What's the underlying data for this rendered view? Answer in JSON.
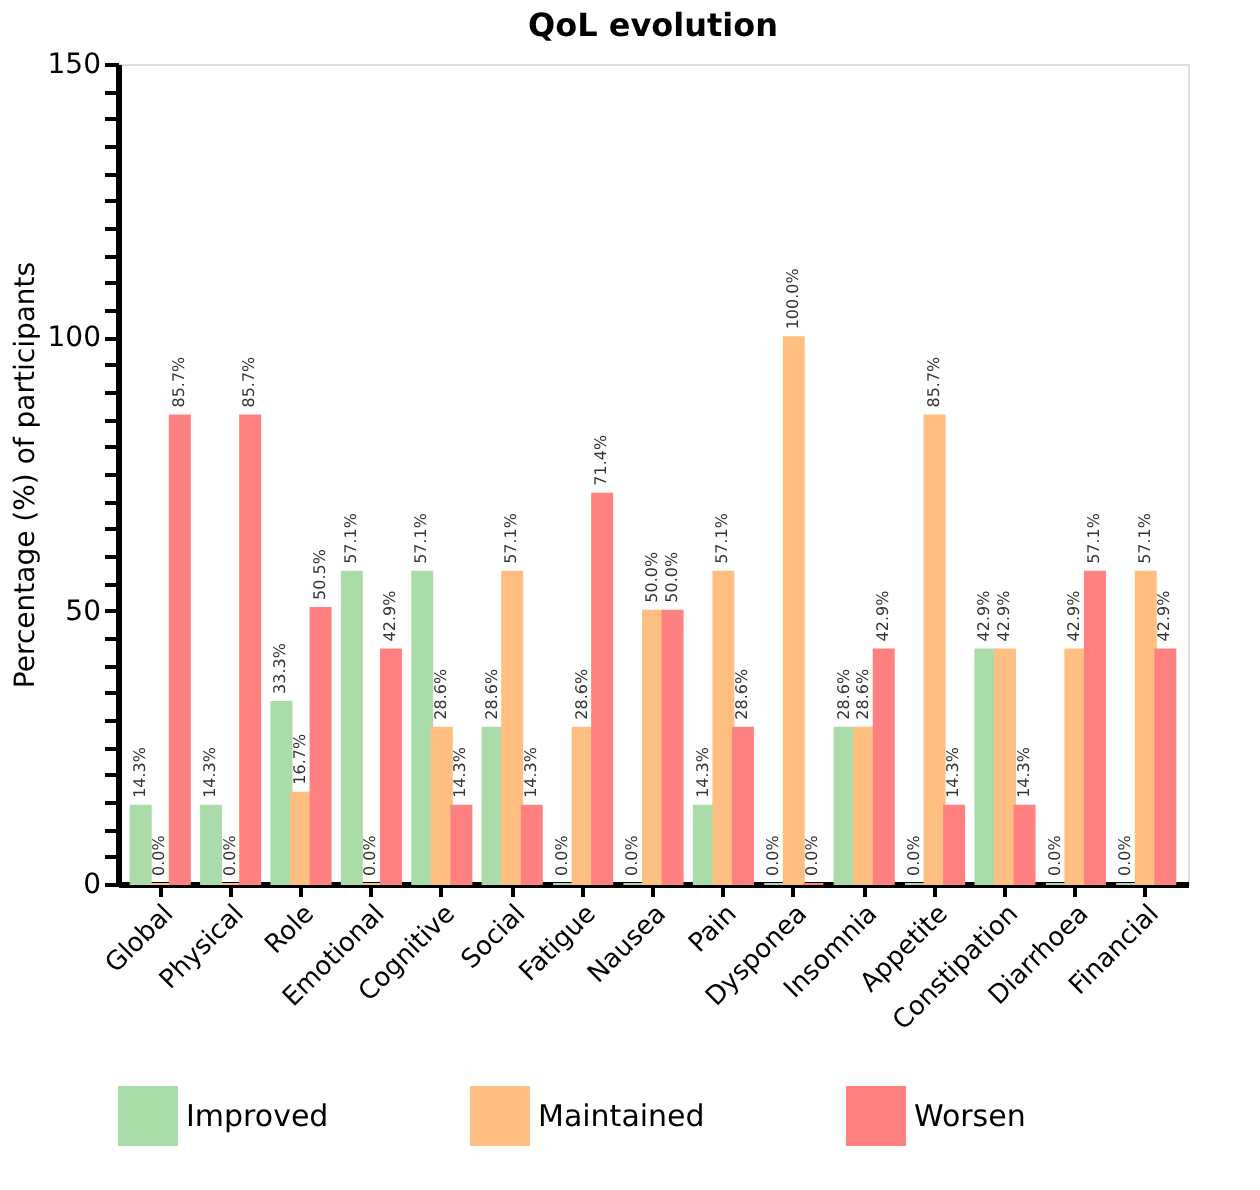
{
  "chart_data": {
    "type": "bar",
    "title": "QoL evolution",
    "ylabel": "Percentage (%) of participants",
    "categories": [
      "Global",
      "Physical",
      "Role",
      "Emotional",
      "Cognitive",
      "Social",
      "Fatigue",
      "Nausea",
      "Pain",
      "Dysponea",
      "Insomnia",
      "Appetite",
      "Constipation",
      "Diarrhoea",
      "Financial"
    ],
    "series": [
      {
        "name": "Improved",
        "color": "#a9dca9",
        "values": [
          14.3,
          14.3,
          33.3,
          57.1,
          57.1,
          28.6,
          0.0,
          0.0,
          14.3,
          0.0,
          28.6,
          0.0,
          42.9,
          0.0,
          0.0
        ],
        "value_labels": [
          "14.3%",
          "14.3%",
          "33.3%",
          "57.1%",
          "57.1%",
          "28.6%",
          "0.0%",
          "0.0%",
          "14.3%",
          "0.0%",
          "28.6%",
          "0.0%",
          "42.9%",
          "0.0%",
          "0.0%"
        ]
      },
      {
        "name": "Maintained",
        "color": "#ffbf80",
        "values": [
          0.0,
          0.0,
          16.7,
          0.0,
          28.6,
          57.1,
          28.6,
          50.0,
          57.1,
          100.0,
          28.6,
          85.7,
          42.9,
          42.9,
          57.1
        ],
        "value_labels": [
          "0.0%",
          "0.0%",
          "16.7%",
          "0.0%",
          "28.6%",
          "57.1%",
          "28.6%",
          "50.0%",
          "57.1%",
          "100.0%",
          "28.6%",
          "85.7%",
          "42.9%",
          "42.9%",
          "57.1%"
        ]
      },
      {
        "name": "Worsen",
        "color": "#ff8080",
        "values": [
          85.7,
          85.7,
          50.5,
          42.9,
          14.3,
          14.3,
          71.4,
          50.0,
          28.6,
          0.0,
          42.9,
          14.3,
          14.3,
          57.1,
          42.9
        ],
        "value_labels": [
          "85.7%",
          "85.7%",
          "50.5%",
          "42.9%",
          "14.3%",
          "14.3%",
          "71.4%",
          "50.0%",
          "28.6%",
          "0.0%",
          "42.9%",
          "14.3%",
          "14.3%",
          "57.1%",
          "42.9%"
        ]
      }
    ],
    "ylim": [
      0,
      150
    ],
    "yticks": [
      0,
      {
        "value": 5,
        "label": null
      },
      {
        "value": 10,
        "label": null
      },
      {
        "value": 15,
        "label": null
      },
      {
        "value": 20,
        "label": null
      },
      {
        "value": 25,
        "label": null
      },
      {
        "value": 30,
        "label": null
      },
      {
        "value": 35,
        "label": null
      },
      {
        "value": 40,
        "label": null
      },
      {
        "value": 45,
        "label": null
      },
      50,
      {
        "value": 55,
        "label": null
      },
      {
        "value": 60,
        "label": null
      },
      {
        "value": 65,
        "label": null
      },
      {
        "value": 70,
        "label": null
      },
      {
        "value": 75,
        "label": null
      },
      {
        "value": 80,
        "label": null
      },
      {
        "value": 85,
        "label": null
      },
      {
        "value": 90,
        "label": null
      },
      {
        "value": 95,
        "label": null
      },
      100,
      {
        "value": 105,
        "label": null
      },
      {
        "value": 110,
        "label": null
      },
      {
        "value": 115,
        "label": null
      },
      {
        "value": 120,
        "label": null
      },
      {
        "value": 125,
        "label": null
      },
      {
        "value": 130,
        "label": null
      },
      {
        "value": 135,
        "label": null
      },
      {
        "value": 140,
        "label": null
      },
      {
        "value": 145,
        "label": null
      },
      150
    ],
    "grid": false,
    "legend": "bottom"
  }
}
